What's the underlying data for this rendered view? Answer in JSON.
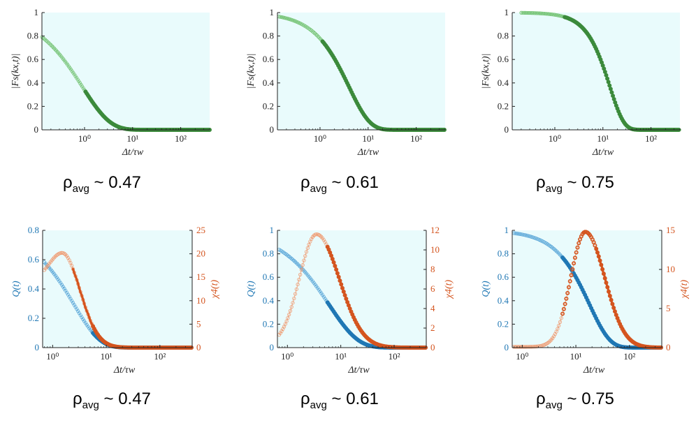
{
  "colors": {
    "panel_bg": "#e9fbfc",
    "green": "#3b8a3b",
    "green_light": "#76c476",
    "blue": "#1f77b4",
    "blue_light": "#5aa7d8",
    "orange": "#d4541e",
    "orange_light": "#ef9a70"
  },
  "captions": [
    {
      "symbol": "ρ",
      "sub": "avg",
      "text": " ~ 0.47"
    },
    {
      "symbol": "ρ",
      "sub": "avg",
      "text": " ~ 0.61"
    },
    {
      "symbol": "ρ",
      "sub": "avg",
      "text": " ~ 0.75"
    },
    {
      "symbol": "ρ",
      "sub": "avg",
      "text": " ~ 0.47"
    },
    {
      "symbol": "ρ",
      "sub": "avg",
      "text": " ~ 0.61"
    },
    {
      "symbol": "ρ",
      "sub": "avg",
      "text": " ~ 0.75"
    }
  ],
  "chart_data": [
    {
      "type": "line",
      "title": "",
      "xscale": "log",
      "xlabel": "Δt/τw",
      "ylabel": "|Fs(kx,t)|",
      "xlim": [
        0.13,
        400
      ],
      "ylim": [
        0,
        1
      ],
      "xticks": [
        1,
        10,
        100
      ],
      "xtick_labels": [
        "10⁰",
        "10¹",
        "10²"
      ],
      "yticks": [
        0,
        0.2,
        0.4,
        0.6,
        0.8,
        1
      ],
      "ytick_labels": [
        "0",
        "0.2",
        "0.4",
        "0.6",
        "0.8",
        "1"
      ],
      "series": [
        {
          "name": "|Fs(kx,t)|",
          "color": "green",
          "model": "stretched",
          "A": 1.0,
          "tau": 0.9,
          "beta": 0.75,
          "x0": 0.13
        }
      ]
    },
    {
      "type": "line",
      "title": "",
      "xscale": "log",
      "xlabel": "Δt/τw",
      "ylabel": "|Fs(kx,t)|",
      "xlim": [
        0.13,
        400
      ],
      "ylim": [
        0,
        1
      ],
      "xticks": [
        1,
        10,
        100
      ],
      "xtick_labels": [
        "10⁰",
        "10¹",
        "10²"
      ],
      "yticks": [
        0,
        0.2,
        0.4,
        0.6,
        0.8,
        1
      ],
      "ytick_labels": [
        "0",
        "0.2",
        "0.4",
        "0.6",
        "0.8",
        "1"
      ],
      "series": [
        {
          "name": "|Fs(kx,t)|",
          "color": "green",
          "model": "stretched",
          "A": 1.0,
          "tau": 4.0,
          "beta": 1.0,
          "x0": 0.14
        }
      ]
    },
    {
      "type": "line",
      "title": "",
      "xscale": "log",
      "xlabel": "Δt/τw",
      "ylabel": "|Fs(kx,t)|",
      "xlim": [
        0.13,
        400
      ],
      "ylim": [
        0,
        1
      ],
      "xticks": [
        1,
        10,
        100
      ],
      "xtick_labels": [
        "10⁰",
        "10¹",
        "10²"
      ],
      "yticks": [
        0,
        0.2,
        0.4,
        0.6,
        0.8,
        1
      ],
      "ytick_labels": [
        "0",
        "0.2",
        "0.4",
        "0.6",
        "0.8",
        "1"
      ],
      "series": [
        {
          "name": "|Fs(kx,t)|",
          "color": "green",
          "model": "stretched",
          "A": 1.0,
          "tau": 14.0,
          "beta": 1.5,
          "x0": 0.2
        }
      ]
    },
    {
      "type": "line",
      "title": "",
      "xscale": "log",
      "xlabel": "Δt/τw",
      "ylabel": "Q(t)",
      "ylabel2": "χ4(t)",
      "xlim": [
        0.65,
        400
      ],
      "ylim": [
        0,
        0.8
      ],
      "ylim2": [
        0,
        25
      ],
      "xticks": [
        1,
        10,
        100
      ],
      "xtick_labels": [
        "10⁰",
        "10¹",
        "10²"
      ],
      "yticks": [
        0,
        0.2,
        0.4,
        0.6,
        0.8
      ],
      "ytick_labels": [
        "0",
        "0.2",
        "0.4",
        "0.6",
        "0.8"
      ],
      "yticks2": [
        0,
        5,
        10,
        15,
        20,
        25
      ],
      "ytick_labels2": [
        "0",
        "5",
        "10",
        "15",
        "20",
        "25"
      ],
      "series": [
        {
          "name": "Q(t)",
          "color": "blue",
          "axis": "left",
          "model": "stretched",
          "A": 0.8,
          "tau": 2.5,
          "beta": 0.9,
          "x0": 0.7
        },
        {
          "name": "χ4(t)",
          "color": "orange",
          "axis": "right",
          "model": "peak",
          "base": 14,
          "peak": 20.2,
          "xpeak": 1.5,
          "width": 0.35,
          "xstart": 0.7
        }
      ]
    },
    {
      "type": "line",
      "title": "",
      "xscale": "log",
      "xlabel": "Δt/τw",
      "ylabel": "Q(t)",
      "ylabel2": "χ4(t)",
      "xlim": [
        0.65,
        400
      ],
      "ylim": [
        0,
        1
      ],
      "ylim2": [
        0,
        12
      ],
      "xticks": [
        1,
        10,
        100
      ],
      "xtick_labels": [
        "10⁰",
        "10¹",
        "10²"
      ],
      "yticks": [
        0,
        0.2,
        0.4,
        0.6,
        0.8,
        1
      ],
      "ytick_labels": [
        "0",
        "0.2",
        "0.4",
        "0.6",
        "0.8",
        "1"
      ],
      "yticks2": [
        0,
        2,
        4,
        6,
        8,
        10,
        12
      ],
      "ytick_labels2": [
        "0",
        "2",
        "4",
        "6",
        "8",
        "10",
        "12"
      ],
      "series": [
        {
          "name": "Q(t)",
          "color": "blue",
          "axis": "left",
          "model": "stretched",
          "A": 1.0,
          "tau": 6.0,
          "beta": 0.8,
          "x0": 0.7
        },
        {
          "name": "χ4(t)",
          "color": "orange",
          "axis": "right",
          "model": "peak",
          "base": 0.3,
          "peak": 11.6,
          "xpeak": 3.5,
          "width": 0.45,
          "xstart": 0.7
        }
      ]
    },
    {
      "type": "line",
      "title": "",
      "xscale": "log",
      "xlabel": "Δt/τw",
      "ylabel": "Q(t)",
      "ylabel2": "χ4(t)",
      "xlim": [
        0.65,
        400
      ],
      "ylim": [
        0,
        1
      ],
      "ylim2": [
        0,
        15
      ],
      "xticks": [
        1,
        10,
        100
      ],
      "xtick_labels": [
        "10⁰",
        "10¹",
        "10²"
      ],
      "yticks": [
        0,
        0.2,
        0.4,
        0.6,
        0.8,
        1
      ],
      "ytick_labels": [
        "0",
        "0.2",
        "0.4",
        "0.6",
        "0.8",
        "1"
      ],
      "yticks2": [
        0,
        5,
        10,
        15
      ],
      "ytick_labels2": [
        "0",
        "5",
        "10",
        "15"
      ],
      "series": [
        {
          "name": "Q(t)",
          "color": "blue",
          "axis": "left",
          "model": "stretched",
          "A": 1.0,
          "tau": 18.0,
          "beta": 1.15,
          "x0": 0.7
        },
        {
          "name": "χ4(t)",
          "color": "orange",
          "axis": "right",
          "model": "peak",
          "base": 0.1,
          "peak": 14.8,
          "xpeak": 15,
          "width": 0.38,
          "xstart": 0.7
        }
      ]
    }
  ]
}
